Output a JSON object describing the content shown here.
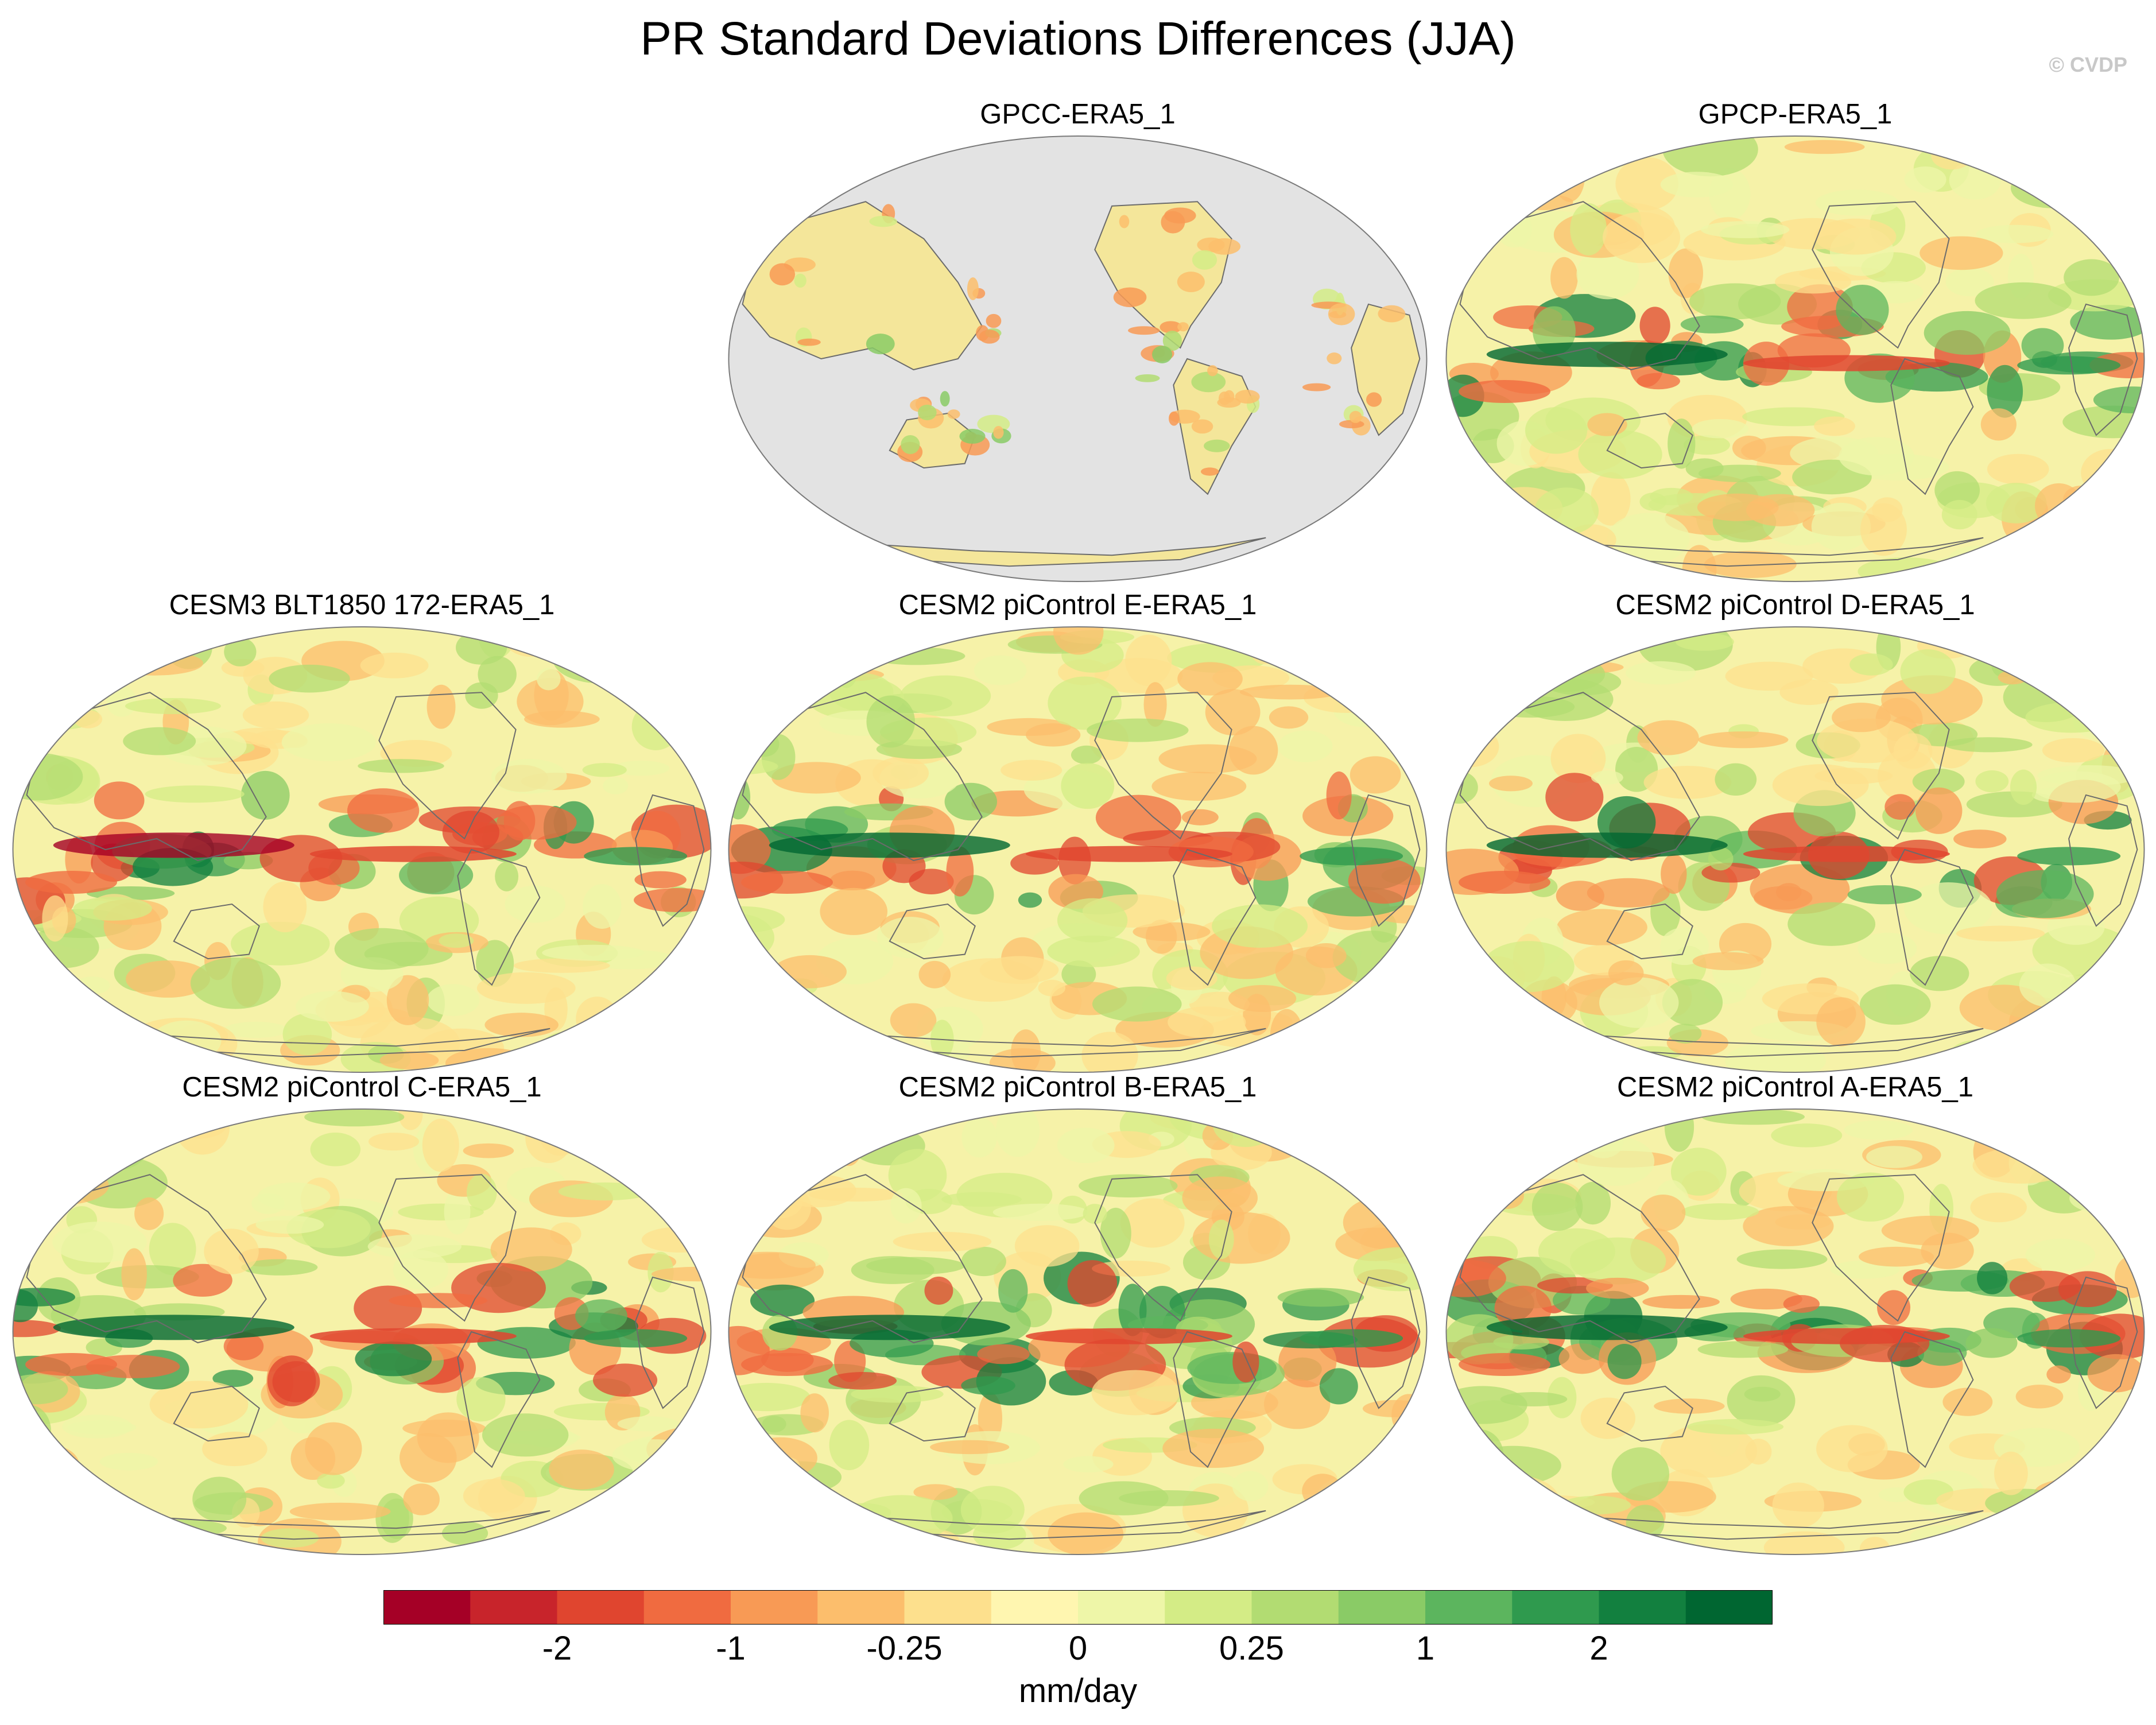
{
  "title": "PR Standard Deviations Differences (JJA)",
  "watermark": "© CVDP",
  "panels": [
    {
      "label": "GPCC-ERA5_1",
      "ocean_masked": true
    },
    {
      "label": "GPCP-ERA5_1",
      "ocean_masked": false
    },
    {
      "label": "CESM3 BLT1850 172-ERA5_1",
      "ocean_masked": false
    },
    {
      "label": "CESM2 piControl E-ERA5_1",
      "ocean_masked": false
    },
    {
      "label": "CESM2 piControl D-ERA5_1",
      "ocean_masked": false
    },
    {
      "label": "CESM2 piControl C-ERA5_1",
      "ocean_masked": false
    },
    {
      "label": "CESM2 piControl B-ERA5_1",
      "ocean_masked": false
    },
    {
      "label": "CESM2 piControl A-ERA5_1",
      "ocean_masked": false
    }
  ],
  "colorbar": {
    "colors": [
      "#a50026",
      "#c8242b",
      "#e0452f",
      "#f06b40",
      "#f89a55",
      "#fcbe6c",
      "#fde08d",
      "#fff6b0",
      "#eef6a8",
      "#d4ec86",
      "#b2dc72",
      "#8acb66",
      "#5cb55e",
      "#2f9a4e",
      "#12803f",
      "#006631"
    ],
    "tick_labels": [
      "-2",
      "-1",
      "-0.25",
      "0",
      "0.25",
      "1",
      "2"
    ],
    "units": "mm/day"
  }
}
